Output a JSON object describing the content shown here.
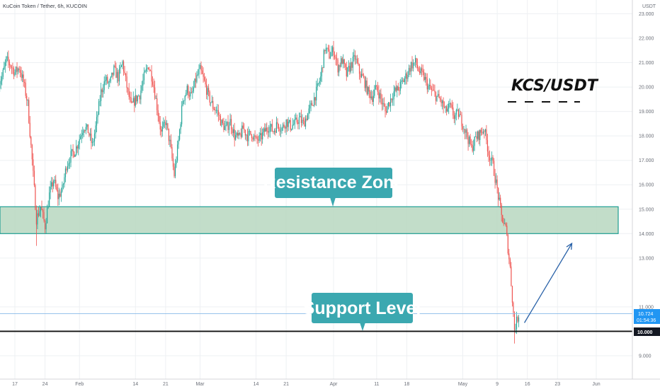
{
  "header": {
    "symbol_title": "KuCoin Token / Tether, 6h, KUCOIN",
    "currency": "USDT"
  },
  "chart_data": {
    "type": "candlestick",
    "ylim": [
      8.4,
      23.5
    ],
    "y_ticks": [
      {
        "value": 23.0,
        "label": "23.000"
      },
      {
        "value": 22.0,
        "label": "22.000"
      },
      {
        "value": 21.0,
        "label": "21.000"
      },
      {
        "value": 20.0,
        "label": "20.000"
      },
      {
        "value": 19.0,
        "label": "19.000"
      },
      {
        "value": 18.0,
        "label": "18.000"
      },
      {
        "value": 17.0,
        "label": "17.000"
      },
      {
        "value": 16.0,
        "label": "16.000"
      },
      {
        "value": 15.0,
        "label": "15.000"
      },
      {
        "value": 14.0,
        "label": "14.000"
      },
      {
        "value": 13.0,
        "label": "13.000"
      },
      {
        "value": 11.0,
        "label": "11.000"
      },
      {
        "value": 9.0,
        "label": "9.000"
      }
    ],
    "x_ticks": [
      {
        "date": "2021-01-17",
        "label": "17"
      },
      {
        "date": "2021-01-24",
        "label": "24"
      },
      {
        "date": "2021-02-01",
        "label": "Feb"
      },
      {
        "date": "2021-02-14",
        "label": "14"
      },
      {
        "date": "2021-02-21",
        "label": "21"
      },
      {
        "date": "2021-03-01",
        "label": "Mar"
      },
      {
        "date": "2021-03-14",
        "label": "14"
      },
      {
        "date": "2021-03-21",
        "label": "21"
      },
      {
        "date": "2021-04-01",
        "label": "Apr"
      },
      {
        "date": "2021-04-11",
        "label": "11"
      },
      {
        "date": "2021-04-18",
        "label": "18"
      },
      {
        "date": "2021-05-01",
        "label": "May"
      },
      {
        "date": "2021-05-09",
        "label": "9"
      },
      {
        "date": "2021-05-16",
        "label": "16"
      },
      {
        "date": "2021-05-23",
        "label": "23"
      },
      {
        "date": "2021-06-01",
        "label": "Jun"
      }
    ],
    "price_path": [
      [
        "2021-01-13",
        20.1
      ],
      [
        "2021-01-14",
        20.4
      ],
      [
        "2021-01-15",
        21.1
      ],
      [
        "2021-01-16",
        20.9
      ],
      [
        "2021-01-17",
        20.6
      ],
      [
        "2021-01-18",
        20.8
      ],
      [
        "2021-01-19",
        20.2
      ],
      [
        "2021-01-20",
        19.3
      ],
      [
        "2021-01-21",
        17.0
      ],
      [
        "2021-01-22",
        14.6
      ],
      [
        "2021-01-23",
        15.1
      ],
      [
        "2021-01-24",
        14.3
      ],
      [
        "2021-01-25",
        15.6
      ],
      [
        "2021-01-26",
        16.2
      ],
      [
        "2021-01-27",
        15.5
      ],
      [
        "2021-01-28",
        15.8
      ],
      [
        "2021-01-29",
        16.8
      ],
      [
        "2021-01-30",
        17.2
      ],
      [
        "2021-01-31",
        17.4
      ],
      [
        "2021-02-02",
        18.4
      ],
      [
        "2021-02-03",
        18.2
      ],
      [
        "2021-02-04",
        17.6
      ],
      [
        "2021-02-05",
        18.6
      ],
      [
        "2021-02-06",
        19.8
      ],
      [
        "2021-02-07",
        20.3
      ],
      [
        "2021-02-08",
        20.1
      ],
      [
        "2021-02-09",
        20.7
      ],
      [
        "2021-02-10",
        20.4
      ],
      [
        "2021-02-11",
        21.0
      ],
      [
        "2021-02-12",
        20.0
      ],
      [
        "2021-02-13",
        19.2
      ],
      [
        "2021-02-14",
        19.5
      ],
      [
        "2021-02-15",
        19.7
      ],
      [
        "2021-02-16",
        20.4
      ],
      [
        "2021-02-17",
        20.9
      ],
      [
        "2021-02-18",
        20.3
      ],
      [
        "2021-02-19",
        19.2
      ],
      [
        "2021-02-20",
        18.1
      ],
      [
        "2021-02-21",
        18.6
      ],
      [
        "2021-02-22",
        17.7
      ],
      [
        "2021-02-23",
        16.4
      ],
      [
        "2021-02-24",
        17.8
      ],
      [
        "2021-02-25",
        19.5
      ],
      [
        "2021-02-26",
        19.9
      ],
      [
        "2021-02-27",
        19.6
      ],
      [
        "2021-02-28",
        20.3
      ],
      [
        "2021-03-01",
        20.7
      ],
      [
        "2021-03-02",
        20.2
      ],
      [
        "2021-03-03",
        19.6
      ],
      [
        "2021-03-04",
        19.2
      ],
      [
        "2021-03-05",
        19.0
      ],
      [
        "2021-03-06",
        18.5
      ],
      [
        "2021-03-07",
        18.3
      ],
      [
        "2021-03-08",
        18.6
      ],
      [
        "2021-03-09",
        18.0
      ],
      [
        "2021-03-10",
        17.9
      ],
      [
        "2021-03-11",
        18.3
      ],
      [
        "2021-03-12",
        18.0
      ],
      [
        "2021-03-13",
        18.1
      ],
      [
        "2021-03-14",
        17.8
      ],
      [
        "2021-03-15",
        17.9
      ],
      [
        "2021-03-16",
        18.2
      ],
      [
        "2021-03-17",
        18.4
      ],
      [
        "2021-03-18",
        18.2
      ],
      [
        "2021-03-19",
        18.5
      ],
      [
        "2021-03-20",
        18.3
      ],
      [
        "2021-03-21",
        18.6
      ],
      [
        "2021-03-22",
        18.4
      ],
      [
        "2021-03-23",
        18.5
      ],
      [
        "2021-03-24",
        18.7
      ],
      [
        "2021-03-25",
        18.5
      ],
      [
        "2021-03-26",
        18.9
      ],
      [
        "2021-03-27",
        19.3
      ],
      [
        "2021-03-28",
        19.8
      ],
      [
        "2021-03-29",
        20.4
      ],
      [
        "2021-03-30",
        21.6
      ],
      [
        "2021-03-31",
        21.3
      ],
      [
        "2021-04-01",
        21.5
      ],
      [
        "2021-04-02",
        20.8
      ],
      [
        "2021-04-03",
        21.1
      ],
      [
        "2021-04-04",
        20.5
      ],
      [
        "2021-04-05",
        20.9
      ],
      [
        "2021-04-06",
        21.2
      ],
      [
        "2021-04-07",
        20.6
      ],
      [
        "2021-04-08",
        20.3
      ],
      [
        "2021-04-09",
        19.8
      ],
      [
        "2021-04-10",
        19.6
      ],
      [
        "2021-04-11",
        20.0
      ],
      [
        "2021-04-12",
        19.5
      ],
      [
        "2021-04-13",
        19.0
      ],
      [
        "2021-04-14",
        19.4
      ],
      [
        "2021-04-15",
        19.8
      ],
      [
        "2021-04-16",
        19.9
      ],
      [
        "2021-04-17",
        20.2
      ],
      [
        "2021-04-18",
        20.5
      ],
      [
        "2021-04-19",
        20.9
      ],
      [
        "2021-04-20",
        21.0
      ],
      [
        "2021-04-21",
        20.6
      ],
      [
        "2021-04-22",
        20.4
      ],
      [
        "2021-04-23",
        20.0
      ],
      [
        "2021-04-24",
        19.8
      ],
      [
        "2021-04-25",
        19.6
      ],
      [
        "2021-04-26",
        19.4
      ],
      [
        "2021-04-27",
        19.0
      ],
      [
        "2021-04-28",
        19.2
      ],
      [
        "2021-04-29",
        18.8
      ],
      [
        "2021-04-30",
        18.9
      ],
      [
        "2021-05-01",
        18.5
      ],
      [
        "2021-05-02",
        18.0
      ],
      [
        "2021-05-03",
        17.5
      ],
      [
        "2021-05-04",
        17.9
      ],
      [
        "2021-05-05",
        18.1
      ],
      [
        "2021-05-06",
        18.3
      ],
      [
        "2021-05-07",
        17.3
      ],
      [
        "2021-05-08",
        16.8
      ],
      [
        "2021-05-09",
        15.8
      ],
      [
        "2021-05-10",
        14.7
      ],
      [
        "2021-05-11",
        14.2
      ],
      [
        "2021-05-12",
        12.6
      ],
      [
        "2021-05-13",
        10.1
      ],
      [
        "2021-05-14",
        10.7
      ]
    ],
    "support_level": 10.0,
    "resistance_zone": [
      14.0,
      15.1
    ],
    "current_price": 10.724
  },
  "annotations": {
    "pair_label": "KCS/USDT",
    "resistance_label": "Resistance Zone",
    "support_label": "Support Level"
  },
  "price_badges": {
    "current": "10.724",
    "countdown": "01:54:36",
    "support": "10.000"
  },
  "colors": {
    "up": "#26a69a",
    "down": "#ef5350",
    "zone_fill": "#b7d7c0",
    "zone_border": "#1f9e93",
    "callout": "#3ba8b0",
    "arrow": "#2a62a8",
    "current_line": "#87b9e8",
    "support_line": "#111111"
  }
}
